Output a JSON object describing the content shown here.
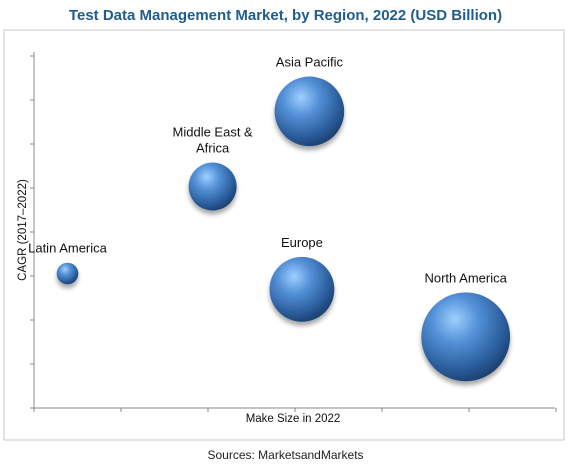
{
  "chart_data": {
    "type": "bubble",
    "title": "Test Data Management Market, by Region, 2022 (USD Billion)",
    "xlabel": "Make Size in 2022",
    "ylabel": "CAGR (2017–2022)",
    "grid": false,
    "legend": "none",
    "series": [
      {
        "name": "Latin America",
        "x": 0.9,
        "y": 3.4,
        "size": 0.45,
        "color": "#3d78bd"
      },
      {
        "name": "Middle East & Africa",
        "x": 4.8,
        "y": 5.6,
        "size": 1.0,
        "color": "#3d78bd"
      },
      {
        "name": "Asia Pacific",
        "x": 7.4,
        "y": 7.5,
        "size": 1.45,
        "color": "#3d78bd"
      },
      {
        "name": "Europe",
        "x": 7.2,
        "y": 3.0,
        "size": 1.35,
        "color": "#3d78bd"
      },
      {
        "name": "North America",
        "x": 11.6,
        "y": 1.8,
        "size": 1.85,
        "color": "#3d78bd"
      }
    ],
    "xlim": [
      0,
      14
    ],
    "ylim": [
      0,
      9
    ]
  },
  "source": "Sources: MarketsandMarkets"
}
